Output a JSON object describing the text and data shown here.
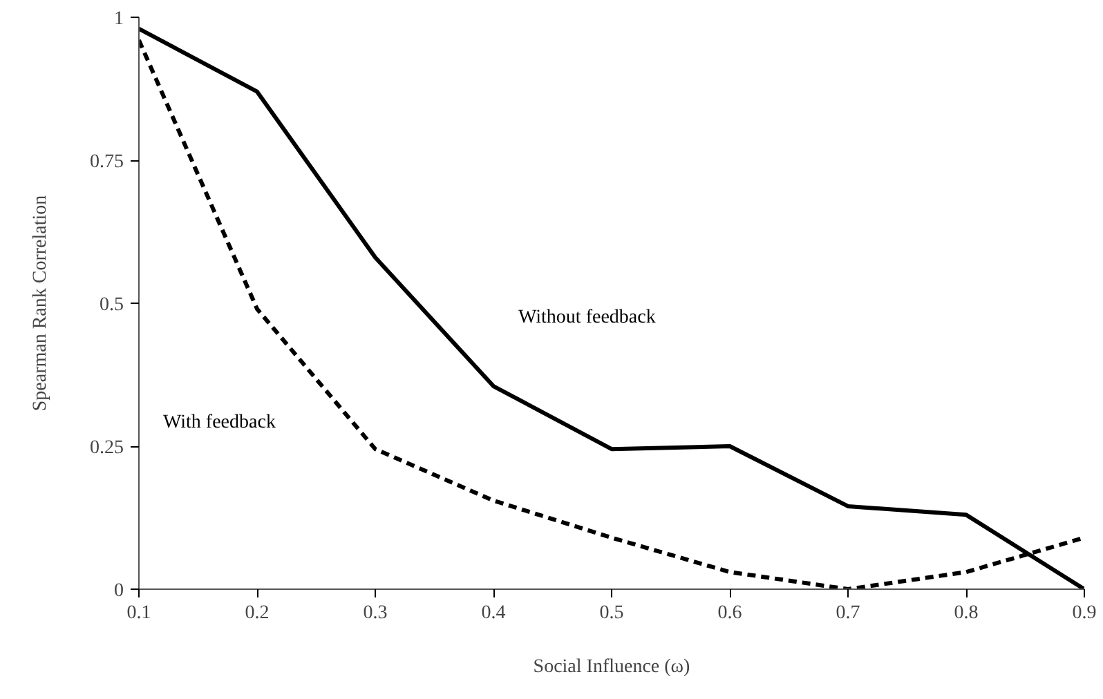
{
  "chart_data": {
    "type": "line",
    "xlabel": "Social Influence (ω)",
    "ylabel": "Spearman Rank Correlation",
    "x": [
      0.1,
      0.2,
      0.3,
      0.4,
      0.5,
      0.6,
      0.7,
      0.8,
      0.9
    ],
    "series": [
      {
        "name": "Without feedback",
        "color": "#000000",
        "line_style": "solid",
        "values": [
          0.98,
          0.87,
          0.58,
          0.355,
          0.245,
          0.25,
          0.145,
          0.13,
          0.0
        ]
      },
      {
        "name": "With feedback",
        "color": "#000000",
        "line_style": "dashed",
        "values": [
          0.96,
          0.49,
          0.245,
          0.155,
          0.09,
          0.03,
          0.0,
          0.03,
          0.09
        ]
      }
    ],
    "xlim": [
      0.1,
      0.9
    ],
    "ylim": [
      0,
      1
    ],
    "xticks": [
      0.1,
      0.2,
      0.3,
      0.4,
      0.5,
      0.6,
      0.7,
      0.8,
      0.9
    ],
    "yticks": [
      0,
      0.25,
      0.5,
      0.75,
      1
    ],
    "grid": false,
    "marker": "none"
  }
}
